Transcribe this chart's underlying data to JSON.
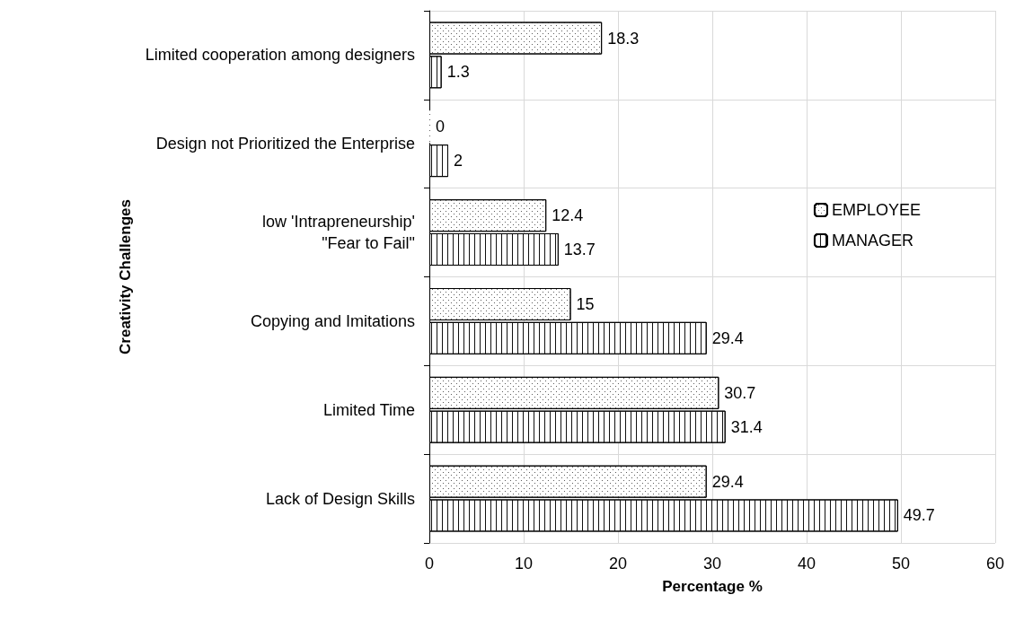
{
  "chart_data": {
    "type": "bar",
    "orientation": "horizontal",
    "xlabel": "Percentage %",
    "ylabel": "Creativity Challenges",
    "categories": [
      "Limited cooperation among designers",
      "Design not Prioritized the Enterprise",
      "low 'Intrapreneurship'\n\"Fear to Fail\"",
      "Copying and Imitations",
      "Limited Time",
      "Lack of Design Skills"
    ],
    "series": [
      {
        "name": "EMPLOYEE",
        "color": "#ffffff",
        "values": [
          18.3,
          0,
          12.4,
          15,
          30.7,
          29.4
        ]
      },
      {
        "name": "MANAGER",
        "color": "#ffffff",
        "values": [
          1.3,
          2,
          13.7,
          29.4,
          31.4,
          49.7
        ]
      }
    ],
    "xlim": [
      0,
      60
    ],
    "xticks": [
      0,
      10,
      20,
      30,
      40,
      50,
      60
    ],
    "grid": true,
    "legend": "right",
    "data_labels": true
  }
}
